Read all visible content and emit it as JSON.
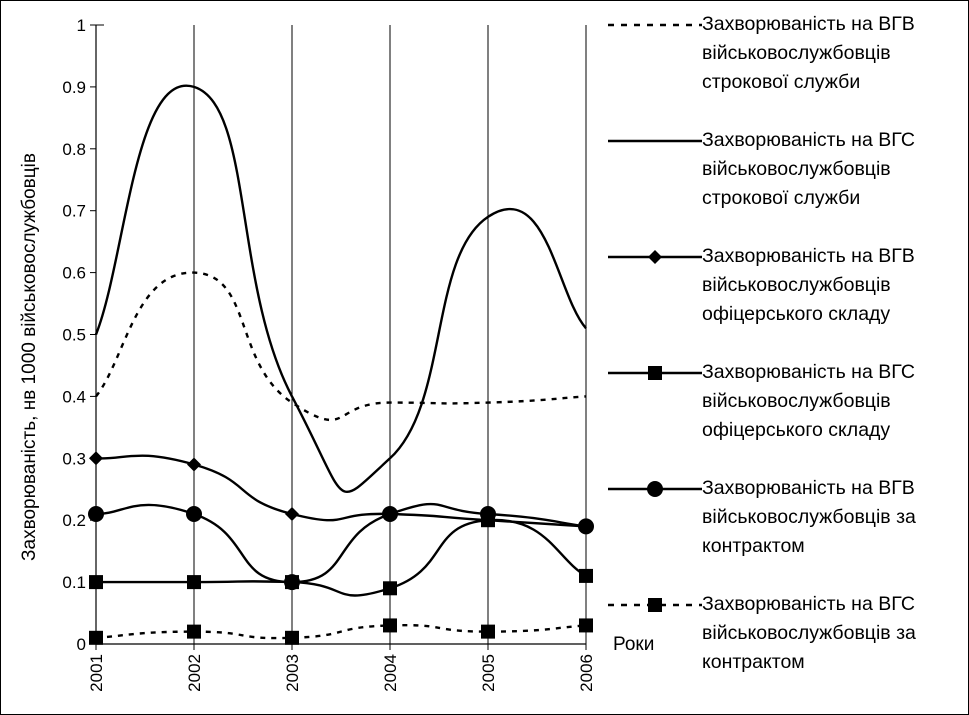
{
  "chart_data": {
    "type": "line",
    "ylabel": "Захворюваність, нв 1000 військовослужбовців",
    "xlabel": "Роки",
    "x": [
      "2001",
      "2002",
      "2003",
      "2004",
      "2005",
      "2006"
    ],
    "ylim": [
      0,
      1
    ],
    "yticks": [
      "0",
      "0.1",
      "0.2",
      "0.3",
      "0.4",
      "0.5",
      "0.6",
      "0.7",
      "0.8",
      "0.9",
      "1"
    ],
    "grid": "vertical",
    "legend_position": "right",
    "series": [
      {
        "name": "Захворюваність на ВГВ військовослужбовців строкової служби",
        "values": [
          0.4,
          0.6,
          0.39,
          0.39,
          0.39,
          0.4
        ],
        "style": "dotted",
        "marker": "none",
        "color": "#000000"
      },
      {
        "name": "Захворюваність на ВГС військовослужбовців строкової служби",
        "values": [
          0.5,
          0.9,
          0.4,
          0.3,
          0.69,
          0.51
        ],
        "style": "solid",
        "marker": "none",
        "color": "#000000"
      },
      {
        "name": "Захворюваність на ВГВ військовослужбовців офіцерського складу",
        "values": [
          0.3,
          0.29,
          0.21,
          0.21,
          0.2,
          0.19
        ],
        "style": "solid",
        "marker": "diamond",
        "color": "#000000"
      },
      {
        "name": "Захворюваність на ВГС військовослужбовців офіцерського складу",
        "values": [
          0.1,
          0.1,
          0.1,
          0.09,
          0.2,
          0.11
        ],
        "style": "solid",
        "marker": "square",
        "color": "#000000"
      },
      {
        "name": "Захворюваність на ВГВ військовослужбовців за контрактом",
        "values": [
          0.21,
          0.21,
          0.1,
          0.21,
          0.21,
          0.19
        ],
        "style": "solid",
        "marker": "circle",
        "color": "#000000"
      },
      {
        "name": "Захворюваність на ВГС військовослужбовців за контрактом",
        "values": [
          0.01,
          0.02,
          0.01,
          0.03,
          0.02,
          0.03
        ],
        "style": "dotted",
        "marker": "square",
        "color": "#000000"
      }
    ]
  }
}
